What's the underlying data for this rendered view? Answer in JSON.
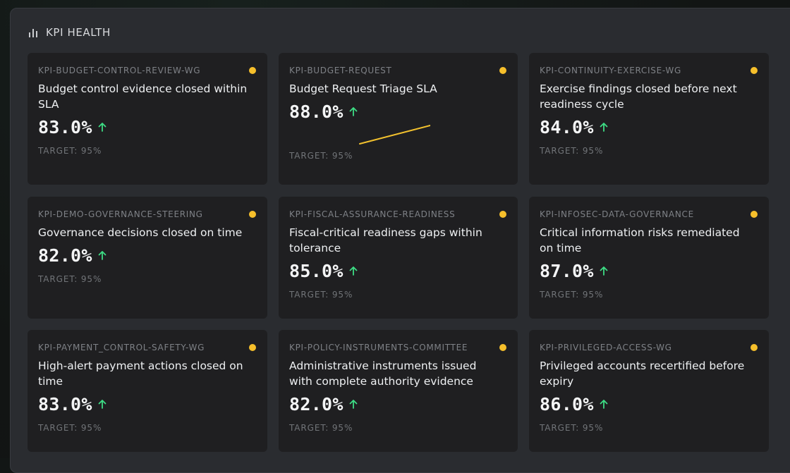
{
  "header": {
    "title": "KPI HEALTH",
    "icon": "bar-chart-icon"
  },
  "colors": {
    "status": "#f6bf2b",
    "trend_up": "#3ddc84",
    "sparkline": "#f2c12e"
  },
  "cards": [
    {
      "id": "KPI-BUDGET-CONTROL-REVIEW-WG",
      "title": "Budget control evidence closed within SLA",
      "value": "83.0%",
      "trend": "up",
      "target": "TARGET: 95%"
    },
    {
      "id": "KPI-BUDGET-REQUEST",
      "title": "Budget Request Triage SLA",
      "value": "88.0%",
      "trend": "up",
      "target": "TARGET: 95%"
    },
    {
      "id": "KPI-CONTINUITY-EXERCISE-WG",
      "title": "Exercise findings closed before next readiness cycle",
      "value": "84.0%",
      "trend": "up",
      "target": "TARGET: 95%"
    },
    {
      "id": "KPI-DEMO-GOVERNANCE-STEERING",
      "title": "Governance decisions closed on time",
      "value": "82.0%",
      "trend": "up",
      "target": "TARGET: 95%"
    },
    {
      "id": "KPI-FISCAL-ASSURANCE-READINESS",
      "title": "Fiscal-critical readiness gaps within tolerance",
      "value": "85.0%",
      "trend": "up",
      "target": "TARGET: 95%"
    },
    {
      "id": "KPI-INFOSEC-DATA-GOVERNANCE",
      "title": "Critical information risks remediated on time",
      "value": "87.0%",
      "trend": "up",
      "target": "TARGET: 95%"
    },
    {
      "id": "KPI-PAYMENT_CONTROL-SAFETY-WG",
      "title": "High-alert payment actions closed on time",
      "value": "83.0%",
      "trend": "up",
      "target": "TARGET: 95%"
    },
    {
      "id": "KPI-POLICY-INSTRUMENTS-COMMITTEE",
      "title": "Administrative instruments issued with complete authority evidence",
      "value": "82.0%",
      "trend": "up",
      "target": "TARGET: 95%"
    },
    {
      "id": "KPI-PRIVILEGED-ACCESS-WG",
      "title": "Privileged accounts recertified before expiry",
      "value": "86.0%",
      "trend": "up",
      "target": "TARGET: 95%"
    }
  ]
}
